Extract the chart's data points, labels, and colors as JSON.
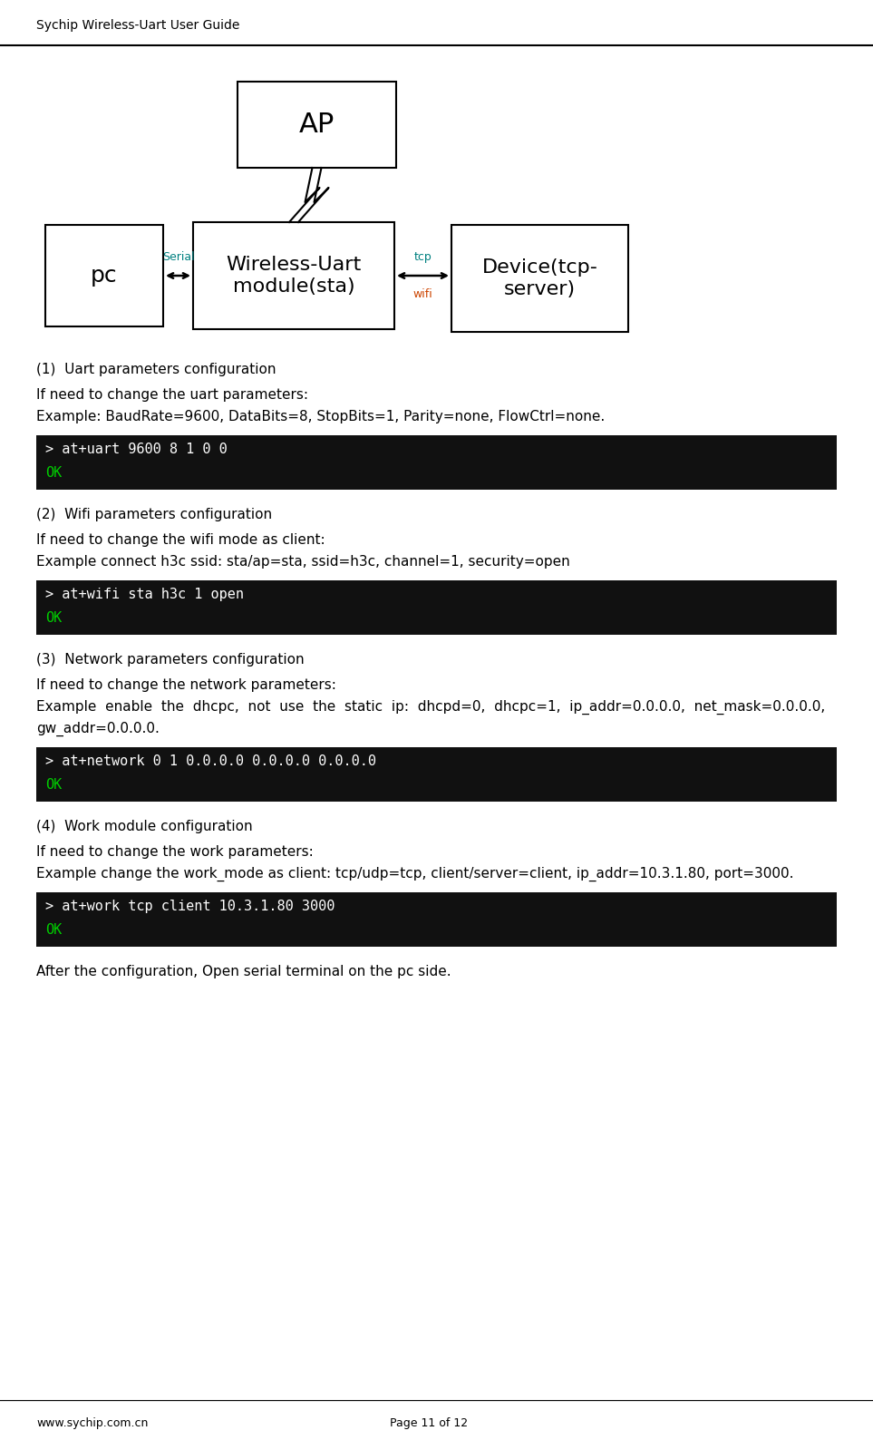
{
  "title_left": "Sychip Wireless-Uart User Guide",
  "footer_left": "www.sychip.com.cn",
  "footer_center": "Page 11 of 12",
  "bg_color": "#ffffff",
  "text_color": "#000000",
  "code_bg": "#111111",
  "ok_fg": "#00cc00",
  "cmd_fg": "#ffffff",
  "label_serial": "Serial",
  "label_tcp": "tcp",
  "label_wifi": "wifi",
  "label_serial_color": "#008080",
  "label_tcp_color": "#008080",
  "label_wifi_color": "#cc4400",
  "sections": [
    {
      "number": "(1)",
      "title": "  Uart parameters configuration",
      "lines": [
        "If need to change the uart parameters:",
        "Example: BaudRate=9600, DataBits=8, StopBits=1, Parity=none, FlowCtrl=none."
      ],
      "code_lines": [
        "> at+uart 9600 8 1 0 0",
        "OK"
      ]
    },
    {
      "number": "(2)",
      "title": "  Wifi parameters configuration",
      "lines": [
        "If need to change the wifi mode as client:",
        "Example connect h3c ssid: sta/ap=sta, ssid=h3c, channel=1, security=open"
      ],
      "code_lines": [
        "> at+wifi sta h3c 1 open",
        "OK"
      ]
    },
    {
      "number": "(3)",
      "title": "  Network parameters configuration",
      "lines": [
        "If need to change the network parameters:",
        "Example  enable  the  dhcpc,  not  use  the  static  ip:  dhcpd=0,  dhcpc=1,  ip_addr=0.0.0.0,  net_mask=0.0.0.0,",
        "gw_addr=0.0.0.0."
      ],
      "code_lines": [
        "> at+network 0 1 0.0.0.0 0.0.0.0 0.0.0.0",
        "OK"
      ]
    },
    {
      "number": "(4)",
      "title": "  Work module configuration",
      "lines": [
        "If need to change the work parameters:",
        "Example change the work_mode as client: tcp/udp=tcp, client/server=client, ip_addr=10.3.1.80, port=3000."
      ],
      "code_lines": [
        "> at+work tcp client 10.3.1.80 3000",
        "OK"
      ]
    }
  ],
  "after_text": "After the configuration, Open serial terminal on the pc side."
}
